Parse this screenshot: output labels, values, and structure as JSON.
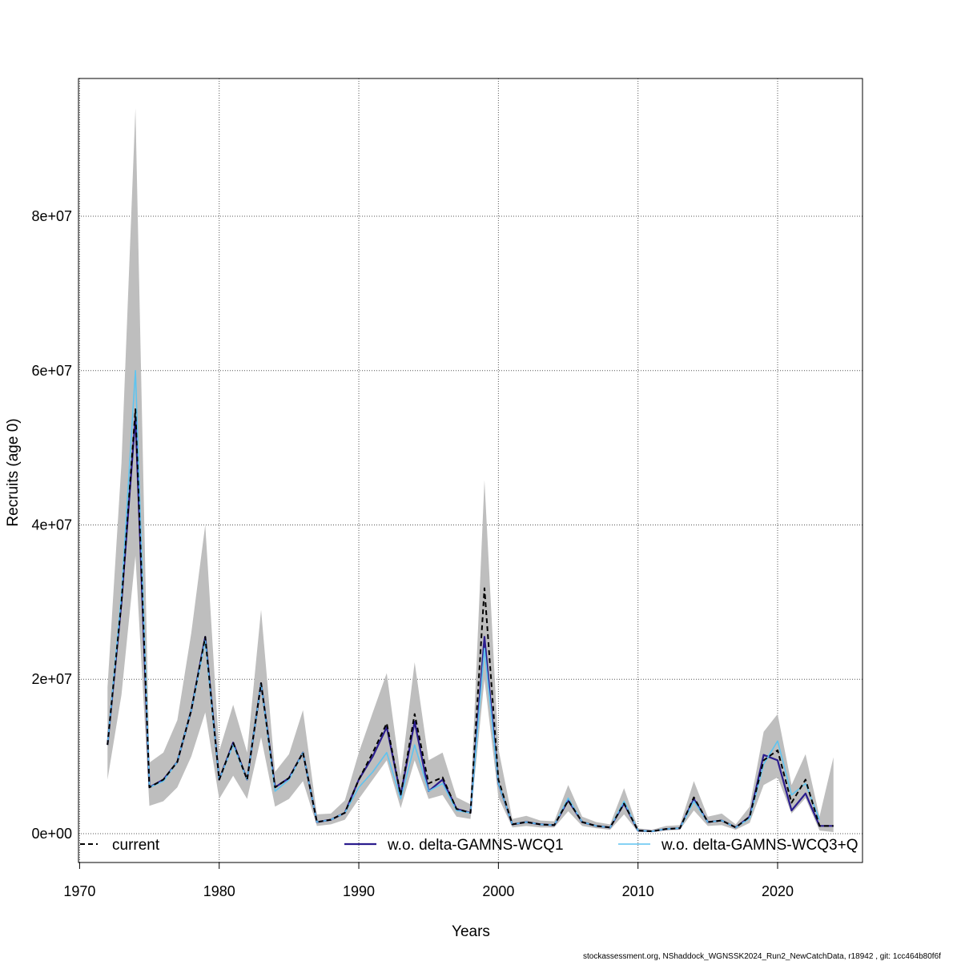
{
  "chart_data": {
    "type": "line",
    "x_label": "Years",
    "y_label": "Recruits (age 0)",
    "footer": "stockassessment.org, NShaddock_WGNSSK2024_Run2_NewCatchData, r18942 , git: 1cc464b80f6f",
    "x": [
      1972,
      1973,
      1974,
      1975,
      1976,
      1977,
      1978,
      1979,
      1980,
      1981,
      1982,
      1983,
      1984,
      1985,
      1986,
      1987,
      1988,
      1989,
      1990,
      1991,
      1992,
      1993,
      1994,
      1995,
      1996,
      1997,
      1998,
      1999,
      2000,
      2001,
      2002,
      2003,
      2004,
      2005,
      2006,
      2007,
      2008,
      2009,
      2010,
      2011,
      2012,
      2013,
      2014,
      2015,
      2016,
      2017,
      2018,
      2019,
      2020,
      2021,
      2022,
      2023,
      2024
    ],
    "band": {
      "color": "#bebebe",
      "lower": [
        7000000.0,
        18000000.0,
        36000000.0,
        3600000.0,
        4200000.0,
        6000000.0,
        10000000.0,
        15700000.0,
        4500000.0,
        7500000.0,
        4500000.0,
        12500000.0,
        3500000.0,
        4500000.0,
        6800000.0,
        1000000.0,
        1200000.0,
        1800000.0,
        4500000.0,
        7000000.0,
        9500000.0,
        3300000.0,
        9500000.0,
        4500000.0,
        5000000.0,
        2200000.0,
        1900000.0,
        20000000.0,
        4700000.0,
        800000.0,
        1000000.0,
        800000.0,
        800000.0,
        2900000.0,
        1000000.0,
        700000.0,
        500000.0,
        2500000.0,
        200000.0,
        200000.0,
        400000.0,
        500000.0,
        3000000.0,
        1000000.0,
        1100000.0,
        500000.0,
        1400000.0,
        6300000.0,
        7300000.0,
        2600000.0,
        4600000.0,
        400000.0,
        200000.0
      ],
      "upper": [
        19000000.0,
        48000000.0,
        94000000.0,
        9200000.0,
        10500000.0,
        14700000.0,
        26000000.0,
        40000000.0,
        10700000.0,
        16700000.0,
        10500000.0,
        29000000.0,
        8000000.0,
        10300000.0,
        16000000.0,
        2500000.0,
        2600000.0,
        4300000.0,
        10500000.0,
        15700000.0,
        20800000.0,
        7400000.0,
        22200000.0,
        9500000.0,
        10500000.0,
        4700000.0,
        3800000.0,
        45800000.0,
        11000000.0,
        1900000.0,
        2300000.0,
        1700000.0,
        1600000.0,
        6300000.0,
        2200000.0,
        1500000.0,
        1200000.0,
        5900000.0,
        700000.0,
        500000.0,
        1000000.0,
        1100000.0,
        6800000.0,
        2200000.0,
        2600000.0,
        1200000.0,
        3500000.0,
        13200000.0,
        15500000.0,
        6300000.0,
        10300000.0,
        2200000.0,
        9900000.0
      ]
    },
    "series": [
      {
        "name": "current",
        "color": "#000000",
        "dash": "6,4",
        "width": 2,
        "values": [
          11500000.0,
          30000000.0,
          55000000.0,
          6000000.0,
          7000000.0,
          9300000.0,
          16000000.0,
          25500000.0,
          7000000.0,
          11800000.0,
          7000000.0,
          19500000.0,
          6000000.0,
          7200000.0,
          10500000.0,
          1500000.0,
          1800000.0,
          2700000.0,
          7000000.0,
          10500000.0,
          14300000.0,
          5000000.0,
          15500000.0,
          6500000.0,
          7300000.0,
          3200000.0,
          2700000.0,
          31800000.0,
          7000000.0,
          1200000.0,
          1500000.0,
          1200000.0,
          1100000.0,
          4300000.0,
          1500000.0,
          1000000.0,
          800000.0,
          3900000.0,
          400000.0,
          300000.0,
          600000.0,
          700000.0,
          4700000.0,
          1500000.0,
          1700000.0,
          800000.0,
          2200000.0,
          9500000.0,
          10800000.0,
          4000000.0,
          7000000.0,
          1000000.0,
          1000000.0
        ]
      },
      {
        "name": "w.o. delta-GAMNS-WCQ1",
        "color": "#2b1d8e",
        "dash": "none",
        "width": 2.2,
        "values": [
          11500000.0,
          30000000.0,
          54000000.0,
          6000000.0,
          7000000.0,
          9300000.0,
          16000000.0,
          25500000.0,
          7000000.0,
          11800000.0,
          7000000.0,
          19500000.0,
          6000000.0,
          7200000.0,
          10500000.0,
          1500000.0,
          1800000.0,
          2700000.0,
          7000000.0,
          10000000.0,
          13800000.0,
          5000000.0,
          14500000.0,
          5500000.0,
          7000000.0,
          3200000.0,
          2700000.0,
          25500000.0,
          6500000.0,
          1200000.0,
          1500000.0,
          1200000.0,
          1100000.0,
          4300000.0,
          1500000.0,
          1000000.0,
          800000.0,
          3900000.0,
          400000.0,
          300000.0,
          600000.0,
          700000.0,
          4500000.0,
          1500000.0,
          1700000.0,
          800000.0,
          2200000.0,
          10200000.0,
          9500000.0,
          3000000.0,
          5200000.0,
          1000000.0,
          1000000.0
        ]
      },
      {
        "name": "w.o. delta-GAMNS-WCQ3+Q",
        "color": "#5ec4f0",
        "dash": "none",
        "width": 1.6,
        "values": [
          11500000.0,
          31000000.0,
          60000000.0,
          6000000.0,
          6800000.0,
          9300000.0,
          16000000.0,
          25000000.0,
          7000000.0,
          11500000.0,
          7000000.0,
          19500000.0,
          5500000.0,
          7000000.0,
          10500000.0,
          1500000.0,
          1800000.0,
          2700000.0,
          6000000.0,
          8000000.0,
          10500000.0,
          4500000.0,
          11500000.0,
          5500000.0,
          6500000.0,
          3000000.0,
          2700000.0,
          24000000.0,
          6500000.0,
          1200000.0,
          1500000.0,
          1200000.0,
          1100000.0,
          4600000.0,
          1500000.0,
          1000000.0,
          800000.0,
          4200000.0,
          400000.0,
          300000.0,
          600000.0,
          700000.0,
          4200000.0,
          1500000.0,
          1700000.0,
          800000.0,
          2000000.0,
          9000000.0,
          12000000.0,
          5000000.0,
          6500000.0,
          1800000.0,
          null
        ]
      }
    ],
    "xlim": [
      1969.92,
      2026.08
    ],
    "ylim": [
      -3740000.0,
      97850000.0
    ],
    "xticks": [
      1970,
      1980,
      1990,
      2000,
      2010,
      2020
    ],
    "yticks": [
      {
        "value": 0,
        "label": "0e+00"
      },
      {
        "value": 20000000.0,
        "label": "2e+07"
      },
      {
        "value": 40000000.0,
        "label": "4e+07"
      },
      {
        "value": 60000000.0,
        "label": "6e+07"
      },
      {
        "value": 80000000.0,
        "label": "8e+07"
      }
    ],
    "grid": true,
    "legend": "bottom"
  }
}
